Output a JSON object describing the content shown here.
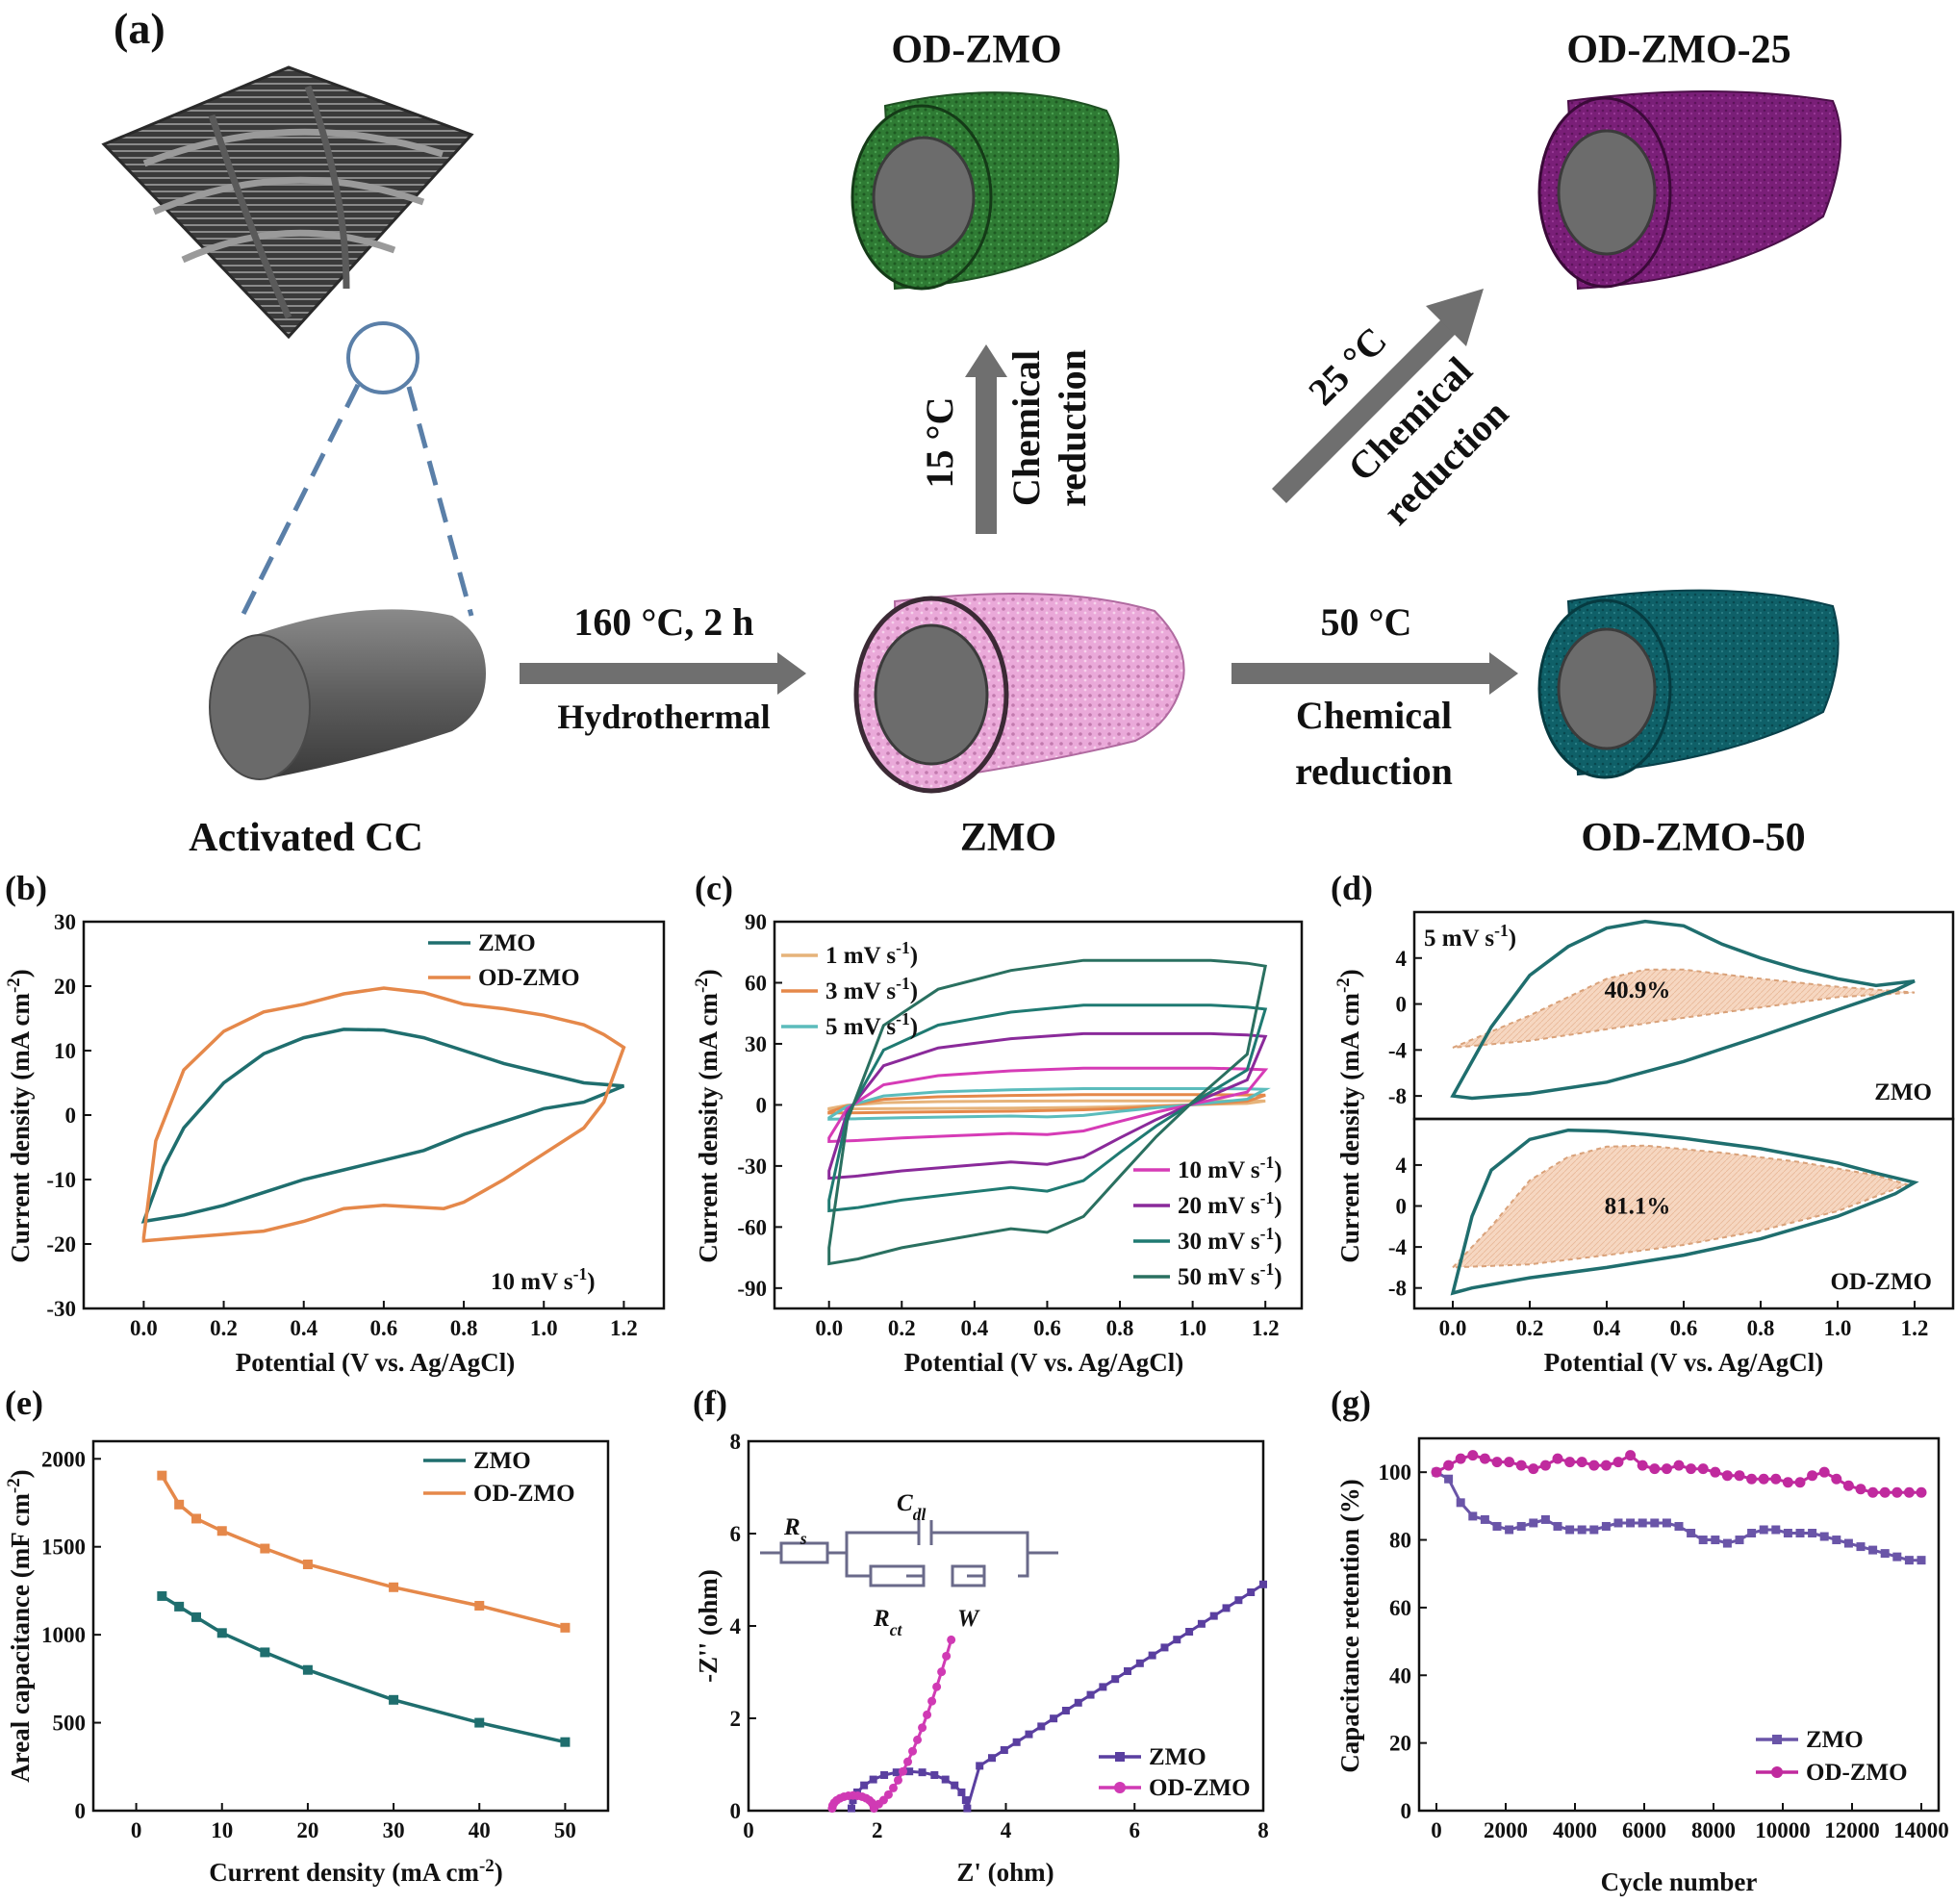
{
  "schematic": {
    "panel_label": "(a)",
    "activated_cc": "Activated CC",
    "zmo": "ZMO",
    "od_zmo": "OD-ZMO",
    "od_zmo_25": "OD-ZMO-25",
    "od_zmo_50": "OD-ZMO-50",
    "step_hydro_temp": "160 °C, 2 h",
    "step_hydro_name": "Hydrothermal",
    "step_15_temp": "15 °C",
    "step_15_l1": "Chemical",
    "step_15_l2": "reduction",
    "step_25_temp": "25 °C",
    "step_25_l1": "Chemical",
    "step_25_l2": "reduction",
    "step_50_temp": "50 °C",
    "step_50_l1": "Chemical",
    "step_50_l2": "reduction",
    "colors": {
      "zmo": "#e9a6d8",
      "od_zmo": "#2e7a32",
      "od_zmo_25": "#7a1f78",
      "od_zmo_50": "#0f5f66",
      "core": "#707070",
      "arrow": "#6f6f6f"
    }
  },
  "chart_data": [
    {
      "id": "b",
      "panel_label": "(b)",
      "type": "line",
      "xlabel": "Potential (V vs. Ag/AgCl)",
      "ylabel": "Current density (mA cm",
      "xlim": [
        -0.15,
        1.3
      ],
      "ylim": [
        -30,
        30
      ],
      "xticks": [
        "0.0",
        "0.2",
        "0.4",
        "0.6",
        "0.8",
        "1.0",
        "1.2"
      ],
      "yticks": [
        "-30",
        "-20",
        "-10",
        "0",
        "10",
        "20",
        "30"
      ],
      "annotation": "10 mV s",
      "legend": [
        "ZMO",
        "OD-ZMO"
      ],
      "series": [
        {
          "name": "ZMO",
          "color": "#1f6e6e",
          "x": [
            0.0,
            0.05,
            0.1,
            0.2,
            0.3,
            0.4,
            0.5,
            0.6,
            0.7,
            0.8,
            0.9,
            1.0,
            1.1,
            1.2,
            1.1,
            1.0,
            0.9,
            0.8,
            0.7,
            0.6,
            0.5,
            0.4,
            0.3,
            0.2,
            0.1,
            0.0
          ],
          "y": [
            -16.5,
            -8,
            -2,
            5,
            9.5,
            12,
            13.3,
            13.2,
            12,
            10,
            8,
            6.5,
            5,
            4.5,
            2,
            1,
            -1,
            -3,
            -5.5,
            -7,
            -8.5,
            -10,
            -12,
            -14,
            -15.5,
            -16.5
          ]
        },
        {
          "name": "OD-ZMO",
          "color": "#e5884a",
          "x": [
            0.0,
            0.03,
            0.1,
            0.2,
            0.3,
            0.4,
            0.5,
            0.6,
            0.7,
            0.8,
            0.9,
            1.0,
            1.1,
            1.15,
            1.2,
            1.15,
            1.1,
            1.0,
            0.9,
            0.8,
            0.75,
            0.6,
            0.5,
            0.4,
            0.3,
            0.2,
            0.1,
            0.0
          ],
          "y": [
            -19,
            -4,
            7,
            13,
            16,
            17.2,
            18.8,
            19.7,
            19,
            17.2,
            16.5,
            15.5,
            14,
            12.5,
            10.5,
            2,
            -2,
            -6,
            -10,
            -13.5,
            -14.5,
            -14,
            -14.5,
            -16.5,
            -18,
            -18.5,
            -19,
            -19.5
          ]
        }
      ]
    },
    {
      "id": "c",
      "panel_label": "(c)",
      "type": "line",
      "xlabel": "Potential (V vs. Ag/AgCl)",
      "ylabel": "Current density (mA cm",
      "xlim": [
        -0.15,
        1.3
      ],
      "ylim": [
        -100,
        90
      ],
      "xticks": [
        "0.0",
        "0.2",
        "0.4",
        "0.6",
        "0.8",
        "1.0",
        "1.2"
      ],
      "yticks": [
        "-90",
        "-60",
        "-30",
        "0",
        "30",
        "60",
        "90"
      ],
      "legend": [
        "1 mV s",
        "3 mV s",
        "5 mV s",
        "10 mV s",
        "20 mV s",
        "30 mV s",
        "50 mV s"
      ],
      "series": [
        {
          "name": "1 mV s",
          "color": "#e6b37a",
          "top": 2,
          "bottom": -2,
          "hump": 0
        },
        {
          "name": "3 mV s",
          "color": "#e5884a",
          "top": 5,
          "bottom": -4,
          "hump": 0
        },
        {
          "name": "5 mV s",
          "color": "#5bbcbc",
          "top": 8,
          "bottom": -7,
          "hump": 1
        },
        {
          "name": "10 mV s",
          "color": "#d63bb6",
          "top": 18,
          "bottom": -18,
          "hump": 2
        },
        {
          "name": "20 mV s",
          "color": "#8a2a9a",
          "top": 35,
          "bottom": -36,
          "hump": 4
        },
        {
          "name": "30 mV s",
          "color": "#1f7a72",
          "top": 49,
          "bottom": -52,
          "hump": 6
        },
        {
          "name": "50 mV s",
          "color": "#2a7060",
          "top": 71,
          "bottom": -78,
          "hump": 8
        }
      ]
    },
    {
      "id": "d",
      "panel_label": "(d)",
      "type": "area",
      "xlabel": "Potential (V vs. Ag/AgCl)",
      "ylabel": "Current density (mA cm",
      "xlim": [
        -0.1,
        1.3
      ],
      "xticks": [
        "0.0",
        "0.2",
        "0.4",
        "0.6",
        "0.8",
        "1.0",
        "1.2"
      ],
      "sub": [
        {
          "name": "ZMO",
          "color": "#3a3a9a",
          "ylim": [
            -10,
            8
          ],
          "yticks": [
            "-8",
            "-4",
            "0",
            "4",
            "8"
          ],
          "scan": "5 mV s",
          "percent": "40.9%",
          "cv_x": [
            0.0,
            0.1,
            0.2,
            0.3,
            0.4,
            0.5,
            0.6,
            0.7,
            0.8,
            0.9,
            1.0,
            1.1,
            1.2,
            1.15,
            1.0,
            0.8,
            0.6,
            0.4,
            0.2,
            0.05,
            0.0
          ],
          "cv_y": [
            -8,
            -2,
            2.5,
            5,
            6.6,
            7.2,
            6.8,
            5.2,
            4,
            3,
            2.2,
            1.6,
            2,
            1.2,
            -0.5,
            -2.8,
            -5,
            -6.8,
            -7.8,
            -8.2,
            -8
          ],
          "fill_x": [
            0.0,
            0.2,
            0.4,
            0.5,
            0.6,
            0.8,
            1.0,
            1.2,
            1.0,
            0.8,
            0.6,
            0.4,
            0.2,
            0.0
          ],
          "fill_y": [
            -3.8,
            -1,
            2.2,
            3,
            3,
            2.2,
            1.5,
            1,
            0.6,
            -0.3,
            -1.2,
            -2.2,
            -3.2,
            -3.8
          ]
        },
        {
          "name": "OD-ZMO",
          "color": "#c2268c",
          "ylim": [
            -10,
            8.5
          ],
          "yticks": [
            "-8",
            "-4",
            "0",
            "4",
            "8"
          ],
          "scan": "",
          "percent": "81.1%",
          "cv_x": [
            0.0,
            0.05,
            0.1,
            0.2,
            0.3,
            0.4,
            0.5,
            0.6,
            0.8,
            1.0,
            1.1,
            1.2,
            1.15,
            1.0,
            0.8,
            0.6,
            0.4,
            0.2,
            0.05,
            0.0
          ],
          "cv_y": [
            -8.5,
            -1,
            3.5,
            6.5,
            7.4,
            7.3,
            7,
            6.6,
            5.6,
            4.2,
            3.2,
            2.3,
            1.2,
            -1,
            -3.2,
            -4.8,
            -6,
            -7,
            -8,
            -8.5
          ],
          "fill_x": [
            0.0,
            0.1,
            0.2,
            0.3,
            0.4,
            0.5,
            0.7,
            0.9,
            1.1,
            1.18,
            1.0,
            0.8,
            0.6,
            0.4,
            0.2,
            0.0
          ],
          "fill_y": [
            -6,
            -2,
            2.5,
            4.8,
            5.8,
            5.9,
            5.2,
            4.3,
            3,
            2.1,
            -0.5,
            -2.4,
            -3.8,
            -4.8,
            -5.7,
            -6
          ]
        }
      ]
    },
    {
      "id": "e",
      "panel_label": "(e)",
      "type": "line",
      "xlabel": "Current density (mA cm",
      "ylabel": "Areal capacitance (mF cm",
      "xlim": [
        -5,
        55
      ],
      "ylim": [
        0,
        2100
      ],
      "xticks": [
        "0",
        "10",
        "20",
        "30",
        "40",
        "50"
      ],
      "yticks": [
        "0",
        "500",
        "1000",
        "1500",
        "2000"
      ],
      "legend": [
        "ZMO",
        "OD-ZMO"
      ],
      "series": [
        {
          "name": "ZMO",
          "color": "#1f6e6e",
          "x": [
            3,
            5,
            7,
            10,
            15,
            20,
            30,
            40,
            50
          ],
          "y": [
            1220,
            1160,
            1100,
            1010,
            900,
            800,
            630,
            500,
            390
          ]
        },
        {
          "name": "OD-ZMO",
          "color": "#e5884a",
          "x": [
            3,
            5,
            7,
            10,
            15,
            20,
            30,
            40,
            50
          ],
          "y": [
            1905,
            1740,
            1660,
            1590,
            1490,
            1400,
            1270,
            1165,
            1040
          ]
        }
      ]
    },
    {
      "id": "f",
      "panel_label": "(f)",
      "type": "scatter",
      "xlabel": "Z' (ohm)",
      "ylabel": "-Z'' (ohm)",
      "xlim": [
        0,
        8
      ],
      "ylim": [
        0,
        8
      ],
      "xticks": [
        "0",
        "2",
        "4",
        "6",
        "8"
      ],
      "yticks": [
        "0",
        "2",
        "4",
        "6",
        "8"
      ],
      "legend": [
        "ZMO",
        "OD-ZMO"
      ],
      "circuit": {
        "rs": "R",
        "rs_sub": "s",
        "cdl": "C",
        "cdl_sub": "dl",
        "rct": "R",
        "rct_sub": "ct",
        "w": "W"
      },
      "series": [
        {
          "name": "ZMO",
          "color": "#5a3fa0",
          "arc": {
            "start": 1.6,
            "end": 3.4,
            "height": 0.8
          },
          "tail": {
            "x0": 3.4,
            "y0": 0.8,
            "x1": 8,
            "y1": 4.9
          }
        },
        {
          "name": "OD-ZMO",
          "color": "#d03ab4",
          "arc": {
            "start": 1.3,
            "end": 1.95,
            "height": 0.28
          },
          "tail": {
            "x0": 1.95,
            "y0": 0.1,
            "x1": 3.15,
            "y1": 3.7
          }
        }
      ]
    },
    {
      "id": "g",
      "panel_label": "(g)",
      "type": "line",
      "xlabel": "Cycle number",
      "ylabel": "Capacitance retention (%)",
      "xlim": [
        -500,
        14500
      ],
      "ylim": [
        0,
        110
      ],
      "xticks": [
        "0",
        "2000",
        "4000",
        "6000",
        "8000",
        "10000",
        "12000",
        "14000"
      ],
      "yticks": [
        "0",
        "20",
        "40",
        "60",
        "80",
        "100"
      ],
      "legend": [
        "ZMO",
        "OD-ZMO"
      ],
      "series": [
        {
          "name": "ZMO",
          "color": "#6a55a8",
          "x": [
            0,
            350,
            700,
            1050,
            1400,
            1750,
            2100,
            2450,
            2800,
            3150,
            3500,
            3850,
            4200,
            4550,
            4900,
            5250,
            5600,
            5950,
            6300,
            6650,
            7000,
            7350,
            7700,
            8050,
            8400,
            8750,
            9100,
            9450,
            9800,
            10150,
            10500,
            10850,
            11200,
            11550,
            11900,
            12250,
            12600,
            12950,
            13300,
            13650,
            14000
          ],
          "y": [
            100,
            98,
            91,
            87,
            86,
            84,
            83,
            84,
            85,
            86,
            84,
            83,
            83,
            83,
            84,
            85,
            85,
            85,
            85,
            85,
            84,
            82,
            80,
            80,
            79,
            80,
            82,
            83,
            83,
            82,
            82,
            82,
            81,
            80,
            79,
            78,
            77,
            76,
            75,
            74,
            74
          ]
        },
        {
          "name": "OD-ZMO",
          "color": "#c02a9e",
          "x": [
            0,
            350,
            700,
            1050,
            1400,
            1750,
            2100,
            2450,
            2800,
            3150,
            3500,
            3850,
            4200,
            4550,
            4900,
            5250,
            5600,
            5950,
            6300,
            6650,
            7000,
            7350,
            7700,
            8050,
            8400,
            8750,
            9100,
            9450,
            9800,
            10150,
            10500,
            10850,
            11200,
            11550,
            11900,
            12250,
            12600,
            12950,
            13300,
            13650,
            14000
          ],
          "y": [
            100,
            102,
            104,
            105,
            104,
            103,
            103,
            102,
            101,
            102,
            104,
            103,
            103,
            102,
            102,
            103,
            105,
            102,
            101,
            101,
            102,
            101,
            101,
            100,
            99,
            99,
            98,
            98,
            98,
            97,
            97,
            99,
            100,
            98,
            96,
            95,
            94,
            94,
            94,
            94,
            94
          ]
        }
      ]
    }
  ]
}
